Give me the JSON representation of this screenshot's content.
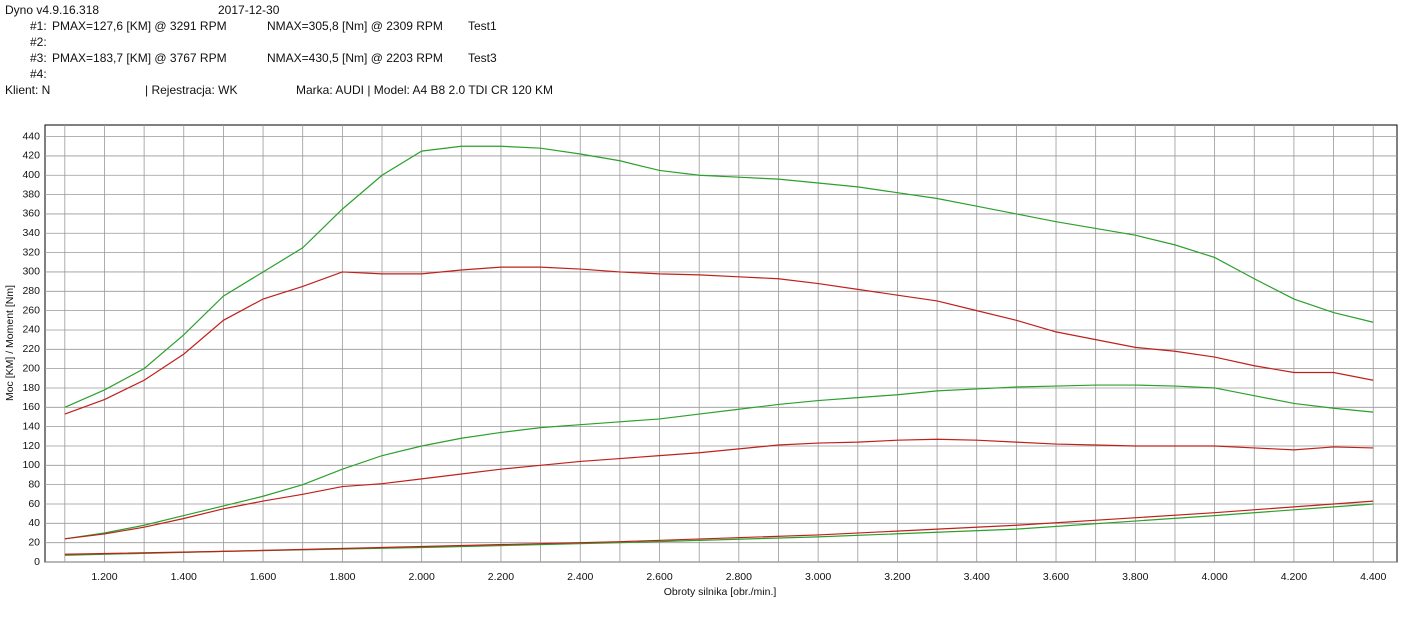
{
  "header": {
    "app": "Dyno v4.9.16.318",
    "date": "2017-12-30",
    "runs": [
      {
        "id": "#1:",
        "pmax": "PMAX=127,6 [KM] @ 3291 RPM",
        "nmax": "NMAX=305,8 [Nm] @ 2309 RPM",
        "name": "Test1"
      },
      {
        "id": "#2:"
      },
      {
        "id": "#3:",
        "pmax": "PMAX=183,7 [KM] @ 3767 RPM",
        "nmax": "NMAX=430,5 [Nm] @ 2203 RPM",
        "name": "Test3"
      },
      {
        "id": "#4:"
      }
    ],
    "client": "Klient: N",
    "registration": "| Rejestracja: WK",
    "vehicle": "Marka: AUDI | Model: A4 B8 2.0 TDI CR 120 KM"
  },
  "chart_data": {
    "type": "line",
    "xlabel": "Obroty silnika [obr./min.]",
    "ylabel": "Moc [KM] / Moment [Nm]",
    "xlim": [
      1050,
      4460
    ],
    "ylim": [
      0,
      452
    ],
    "xticks": [
      {
        "value": 1200,
        "label": "1.200"
      },
      {
        "value": 1400,
        "label": "1.400"
      },
      {
        "value": 1600,
        "label": "1.600"
      },
      {
        "value": 1800,
        "label": "1.800"
      },
      {
        "value": 2000,
        "label": "2.000"
      },
      {
        "value": 2200,
        "label": "2.200"
      },
      {
        "value": 2400,
        "label": "2.400"
      },
      {
        "value": 2600,
        "label": "2.600"
      },
      {
        "value": 2800,
        "label": "2.800"
      },
      {
        "value": 3000,
        "label": "3.000"
      },
      {
        "value": 3200,
        "label": "3.200"
      },
      {
        "value": 3400,
        "label": "3.400"
      },
      {
        "value": 3600,
        "label": "3.600"
      },
      {
        "value": 3800,
        "label": "3.800"
      },
      {
        "value": 4000,
        "label": "4.000"
      },
      {
        "value": 4200,
        "label": "4.200"
      },
      {
        "value": 4400,
        "label": "4.400"
      }
    ],
    "xminorticks": [
      1100,
      1300,
      1500,
      1700,
      1900,
      2100,
      2300,
      2500,
      2700,
      2900,
      3100,
      3300,
      3500,
      3700,
      3900,
      4100,
      4300
    ],
    "yticks": [
      0,
      20,
      40,
      60,
      80,
      100,
      120,
      140,
      160,
      180,
      200,
      220,
      240,
      260,
      280,
      300,
      320,
      340,
      360,
      380,
      400,
      420,
      440
    ],
    "grid": true,
    "x": [
      1100,
      1200,
      1300,
      1400,
      1500,
      1600,
      1700,
      1800,
      1900,
      2000,
      2100,
      2200,
      2300,
      2400,
      2500,
      2600,
      2700,
      2800,
      2900,
      3000,
      3100,
      3200,
      3300,
      3400,
      3500,
      3600,
      3700,
      3800,
      3900,
      4000,
      4100,
      4200,
      4300,
      4400
    ],
    "series": [
      {
        "color": "#2ca02c",
        "values": [
          160,
          178,
          200,
          235,
          275,
          300,
          325,
          365,
          400,
          425,
          430,
          430,
          428,
          422,
          415,
          405,
          400,
          398,
          396,
          392,
          388,
          382,
          376,
          368,
          360,
          352,
          345,
          338,
          328,
          315,
          293,
          272,
          258,
          248
        ]
      },
      {
        "color": "#c0201c",
        "values": [
          153,
          168,
          188,
          215,
          250,
          272,
          285,
          300,
          298,
          298,
          302,
          305,
          305,
          303,
          300,
          298,
          297,
          295,
          293,
          288,
          282,
          276,
          270,
          260,
          250,
          238,
          230,
          222,
          218,
          212,
          203,
          196,
          196,
          188
        ]
      },
      {
        "color": "#2ca02c",
        "values": [
          24,
          30,
          38,
          48,
          58,
          68,
          80,
          96,
          110,
          120,
          128,
          134,
          139,
          142,
          145,
          148,
          153,
          158,
          163,
          167,
          170,
          173,
          177,
          179,
          181,
          182,
          183,
          183,
          182,
          180,
          172,
          164,
          159,
          155
        ]
      },
      {
        "color": "#c0201c",
        "values": [
          24,
          29,
          36,
          45,
          55,
          63,
          70,
          78,
          81,
          86,
          91,
          96,
          100,
          104,
          107,
          110,
          113,
          117,
          121,
          123,
          124,
          126,
          127,
          126,
          124,
          122,
          121,
          120,
          120,
          120,
          118,
          116,
          119,
          118
        ]
      },
      {
        "color": "#2ca02c",
        "x": [
          1100,
          1500,
          2000,
          2500,
          3000,
          3500,
          4000,
          4400
        ],
        "values": [
          7,
          11,
          15,
          20,
          26,
          34,
          48,
          60
        ]
      },
      {
        "color": "#c0201c",
        "x": [
          1100,
          1500,
          2000,
          2500,
          3000,
          3500,
          4000,
          4400
        ],
        "values": [
          8,
          11,
          16,
          21,
          28,
          38,
          51,
          63
        ]
      }
    ]
  }
}
